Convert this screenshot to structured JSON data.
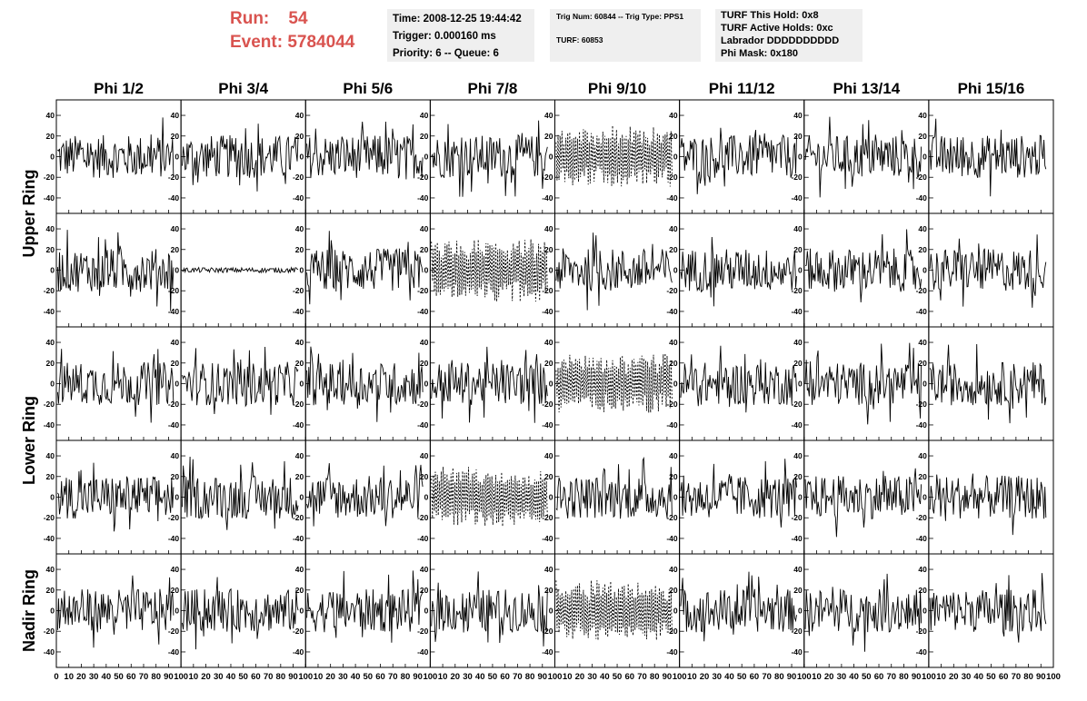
{
  "header": {
    "run_label": "Run:",
    "run_value": "54",
    "event_label": "Event:",
    "event_value": "5784044",
    "info1": [
      "Time: 2008-12-25 19:44:42",
      "Trigger: 0.000160 ms",
      "Priority: 6 -- Queue: 6"
    ],
    "info2": [
      "Trig Num: 60844 -- Trig Type: PPS1",
      "TURF: 60853"
    ],
    "info3": [
      "TURF This Hold: 0x8",
      "TURF Active Holds: 0xc",
      "Labrador DDDDDDDDDD",
      "Phi Mask: 0x180"
    ]
  },
  "columns": [
    "Phi 1/2",
    "Phi 3/4",
    "Phi 5/6",
    "Phi 7/8",
    "Phi 9/10",
    "Phi 11/12",
    "Phi 13/14",
    "Phi 15/16"
  ],
  "ring_labels": [
    "Upper Ring",
    "Lower Ring",
    "Nadir Ring"
  ],
  "colors": {
    "header_red": "#d9534f",
    "info_bg": "#efefef",
    "trace": "#000000"
  },
  "chart_data": {
    "type": "line",
    "grid_rows": 5,
    "grid_cols": 8,
    "xlim": [
      0,
      100
    ],
    "ylim": [
      -55,
      55
    ],
    "x_ticks": [
      "0",
      "10",
      "20",
      "30",
      "40",
      "50",
      "60",
      "70",
      "80",
      "90",
      "100"
    ],
    "y_ticks": [
      "40",
      "20",
      "0",
      "-20",
      "-40"
    ],
    "grid": false,
    "dashed_panels": [
      [
        0,
        4
      ],
      [
        1,
        3
      ],
      [
        2,
        4
      ],
      [
        3,
        3
      ],
      [
        4,
        4
      ]
    ],
    "low_amplitude_panels": [
      [
        1,
        1
      ]
    ],
    "note_values": "each panel shows a noisy waveform of ~100 samples oscillating between about -45 and +45"
  }
}
